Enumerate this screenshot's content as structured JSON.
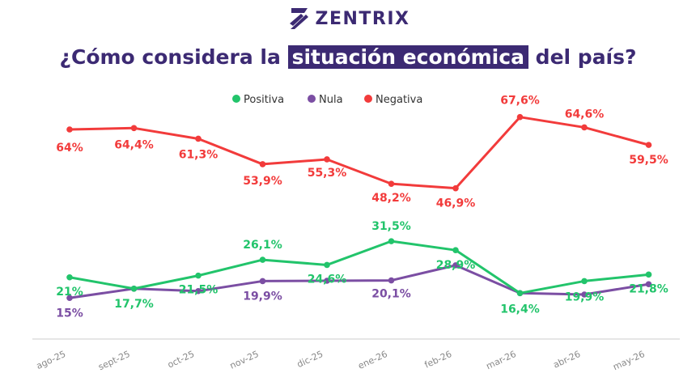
{
  "brand": {
    "name": "ZENTRIX",
    "color": "#3c2a73",
    "icon": "zentrix-logo-icon"
  },
  "title": {
    "before": "¿Cómo considera la",
    "highlight": "situación económica",
    "after": "del país?"
  },
  "chart_data": {
    "type": "line",
    "categories": [
      "ago-25",
      "sept-25",
      "oct-25",
      "nov-25",
      "dic-25",
      "ene-26",
      "feb-26",
      "mar-26",
      "abr-26",
      "may-26"
    ],
    "series": [
      {
        "name": "Positiva",
        "color": "#22c46b",
        "values": [
          21,
          17.7,
          21.5,
          26.1,
          24.6,
          31.5,
          28.9,
          16.4,
          19.9,
          21.8
        ],
        "labels": [
          "21%",
          "17,7%",
          "21,5%",
          "26,1%",
          "24,6%",
          "31,5%",
          "28,9%",
          "16,4%",
          "19,9%",
          "21,8%"
        ]
      },
      {
        "name": "Nula",
        "color": "#7b4ea3",
        "values": [
          15,
          17.7,
          17,
          19.9,
          20,
          20.1,
          24.5,
          16.4,
          16,
          19
        ],
        "labels": [
          "15%",
          "",
          "",
          "19,9%",
          "",
          "20,1%",
          "",
          "",
          "",
          ""
        ]
      },
      {
        "name": "Negativa",
        "color": "#f23b3b",
        "values": [
          64,
          64.4,
          61.3,
          53.9,
          55.3,
          48.2,
          46.9,
          67.6,
          64.6,
          59.5
        ],
        "labels": [
          "64%",
          "64,4%",
          "61,3%",
          "53,9%",
          "55,3%",
          "48,2%",
          "46,9%",
          "67,6%",
          "64,6%",
          "59,5%"
        ]
      }
    ],
    "legend": "top-center",
    "grid": false,
    "ylim": [
      0,
      75
    ],
    "xlabel": "",
    "ylabel": ""
  }
}
